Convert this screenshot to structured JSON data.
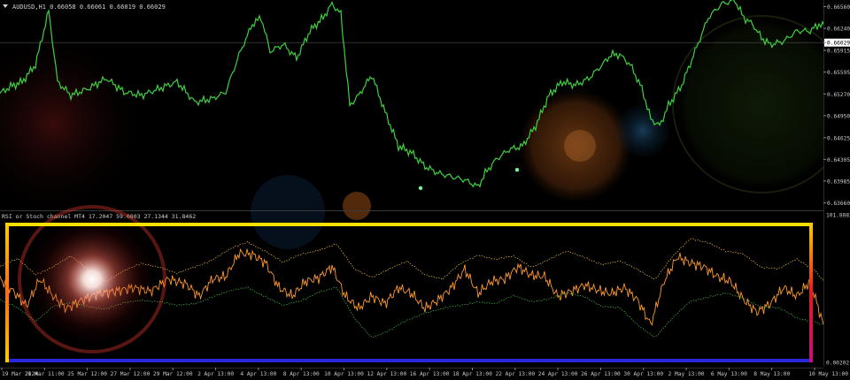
{
  "chart_data": [
    {
      "type": "line",
      "title": "AUDUSD,H1  0.66058 0.66061 0.66019 0.66029",
      "y_ticks": [
        "0.66560",
        "0.66240",
        "0.66029",
        "0.65915",
        "0.65595",
        "0.65270",
        "0.64950",
        "0.64625",
        "0.64305",
        "0.63985",
        "0.63660"
      ],
      "current_price": 0.66029,
      "ylim": [
        0.6363,
        0.6658
      ],
      "series": [
        {
          "color": "#3fd03f",
          "x": [
            0,
            12,
            25,
            40,
            55,
            65,
            80,
            100,
            120,
            140,
            160,
            180,
            200,
            220,
            240,
            255,
            270,
            285,
            295,
            305,
            320,
            335,
            350,
            365,
            375,
            385,
            395,
            405,
            420,
            435,
            450,
            465,
            480,
            495,
            510,
            525,
            540,
            548,
            560,
            575,
            590,
            605,
            620,
            635,
            650,
            665,
            680,
            690,
            700,
            712,
            725,
            735,
            745,
            755,
            770,
            785,
            800,
            815,
            830,
            840,
            850,
            860,
            870,
            885,
            900,
            915,
            925,
            935
          ],
          "values": [
            0.6528,
            0.6538,
            0.6545,
            0.657,
            0.665,
            0.6545,
            0.6525,
            0.6535,
            0.655,
            0.653,
            0.6525,
            0.6535,
            0.6545,
            0.6515,
            0.652,
            0.653,
            0.6585,
            0.663,
            0.664,
            0.659,
            0.66,
            0.658,
            0.662,
            0.664,
            0.666,
            0.6645,
            0.651,
            0.6525,
            0.6555,
            0.65,
            0.645,
            0.644,
            0.642,
            0.641,
            0.6405,
            0.64,
            0.639,
            0.641,
            0.643,
            0.6445,
            0.645,
            0.648,
            0.6525,
            0.6545,
            0.654,
            0.655,
            0.657,
            0.6585,
            0.6585,
            0.657,
            0.6535,
            0.649,
            0.648,
            0.651,
            0.654,
            0.659,
            0.664,
            0.666,
            0.6665,
            0.664,
            0.663,
            0.661,
            0.66,
            0.6605,
            0.662,
            0.662,
            0.663,
            0.6625
          ]
        }
      ],
      "markers": [
        {
          "x": 475,
          "y": 0.6388,
          "color": "#7df0a0"
        },
        {
          "x": 584,
          "y": 0.6415,
          "color": "#7df0a0"
        }
      ]
    },
    {
      "type": "line",
      "title": "RSI or Stoch channel MT4 17.2047 59.0803 27.1344 31.8462",
      "y_ticks": [
        "101.8082",
        "0.00202"
      ],
      "ylim": [
        0,
        102
      ],
      "series": [
        {
          "color": "#ff9a2e",
          "x": [
            0,
            15,
            30,
            45,
            60,
            75,
            90,
            110,
            130,
            150,
            170,
            190,
            210,
            225,
            240,
            255,
            270,
            285,
            300,
            315,
            330,
            345,
            360,
            375,
            390,
            405,
            420,
            435,
            450,
            465,
            480,
            495,
            510,
            525,
            540,
            555,
            570,
            585,
            600,
            615,
            630,
            645,
            660,
            675,
            690,
            705,
            720,
            735,
            750,
            765,
            780,
            795,
            810,
            825,
            840,
            855,
            870,
            885,
            900,
            915,
            930
          ],
          "values": [
            62,
            52,
            40,
            62,
            48,
            38,
            44,
            50,
            52,
            55,
            52,
            62,
            58,
            48,
            62,
            64,
            83,
            82,
            75,
            55,
            48,
            60,
            63,
            72,
            48,
            38,
            48,
            42,
            55,
            50,
            38,
            45,
            55,
            70,
            50,
            60,
            62,
            72,
            65,
            64,
            48,
            52,
            57,
            53,
            50,
            55,
            45,
            25,
            60,
            80,
            75,
            72,
            64,
            60,
            45,
            35,
            42,
            55,
            48,
            60,
            25
          ]
        },
        {
          "color": "#d6a83a",
          "x": [
            0,
            20,
            40,
            60,
            80,
            100,
            120,
            140,
            160,
            180,
            200,
            220,
            240,
            260,
            280,
            300,
            320,
            340,
            360,
            380,
            400,
            420,
            440,
            460,
            480,
            500,
            520,
            540,
            560,
            580,
            600,
            620,
            640,
            660,
            680,
            700,
            720,
            740,
            760,
            780,
            800,
            820,
            840,
            860,
            880,
            900,
            920,
            935
          ],
          "values": [
            72,
            78,
            66,
            72,
            80,
            70,
            60,
            68,
            75,
            72,
            66,
            72,
            78,
            86,
            92,
            85,
            75,
            82,
            86,
            90,
            70,
            64,
            70,
            76,
            66,
            62,
            74,
            82,
            78,
            80,
            72,
            78,
            84,
            80,
            74,
            76,
            70,
            62,
            80,
            95,
            92,
            84,
            82,
            72,
            70,
            78,
            70,
            55
          ]
        },
        {
          "color": "#3faa3f",
          "x": [
            0,
            20,
            40,
            60,
            80,
            100,
            120,
            140,
            160,
            180,
            200,
            220,
            240,
            260,
            280,
            300,
            320,
            340,
            360,
            380,
            400,
            420,
            440,
            460,
            480,
            500,
            520,
            540,
            560,
            580,
            600,
            620,
            640,
            660,
            680,
            700,
            720,
            740,
            760,
            780,
            800,
            820,
            840,
            860,
            880,
            900,
            920,
            935
          ],
          "values": [
            45,
            38,
            28,
            40,
            42,
            40,
            38,
            42,
            45,
            44,
            40,
            42,
            48,
            52,
            55,
            48,
            40,
            44,
            52,
            55,
            30,
            15,
            20,
            28,
            35,
            38,
            40,
            44,
            42,
            48,
            44,
            46,
            50,
            48,
            40,
            38,
            25,
            15,
            30,
            44,
            48,
            50,
            46,
            40,
            38,
            30,
            28,
            22
          ]
        }
      ]
    }
  ],
  "x_ticks": [
    "19 Mar 2024",
    "21 Mar 11:00",
    "25 Mar 12:00",
    "27 Mar 12:00",
    "29 Mar 12:00",
    "2 Apr 13:00",
    "4 Apr 13:00",
    "8 Apr 13:00",
    "10 Apr 13:00",
    "12 Apr 13:00",
    "16 Apr 13:00",
    "18 Apr 13:00",
    "22 Apr 13:00",
    "24 Apr 13:00",
    "26 Apr 13:00",
    "30 Apr 13:00",
    "2 May 13:00",
    "6 May 13:00",
    "8 May 13:00",
    "10 May 13:00"
  ],
  "colors": {
    "background": "#000000",
    "axis_text": "#c8c8c8",
    "grid": "#1e1e1e",
    "frame_top": "#ffe000",
    "frame_bottom": "#2020d0",
    "frame_left": "#ff7a1a",
    "frame_right": "#e0181e"
  }
}
